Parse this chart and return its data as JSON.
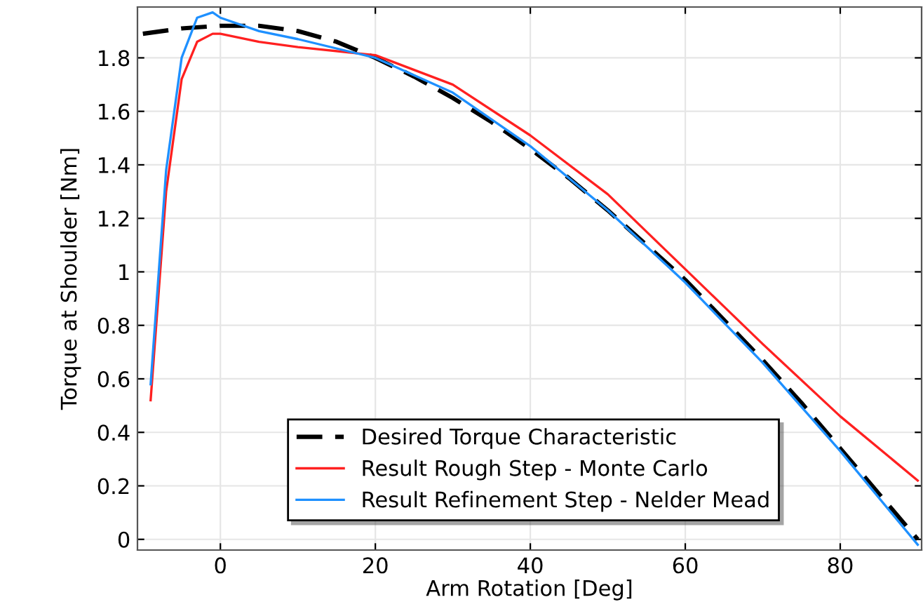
{
  "chart_data": {
    "type": "line",
    "xlabel": "Arm Rotation [Deg]",
    "ylabel": "Torque at Shoulder [Nm]",
    "xlim": [
      -10.7,
      90.5
    ],
    "ylim": [
      -0.04,
      1.99
    ],
    "xticks": [
      0,
      20,
      40,
      60,
      80
    ],
    "yticks": [
      0,
      0.2,
      0.4,
      0.6,
      0.8,
      1,
      1.2,
      1.4,
      1.6,
      1.8
    ],
    "grid": true,
    "legend": "bottom",
    "marker": "none",
    "series": [
      {
        "name": "Desired Torque Characteristic",
        "color": "#000000",
        "line_style": "dashed",
        "x": [
          -10,
          -5,
          0,
          5,
          10,
          15,
          20,
          25,
          30,
          35,
          40,
          45,
          50,
          55,
          60,
          65,
          70,
          75,
          80,
          85,
          90
        ],
        "values": [
          1.89,
          1.91,
          1.92,
          1.92,
          1.9,
          1.86,
          1.8,
          1.73,
          1.65,
          1.56,
          1.46,
          1.35,
          1.23,
          1.1,
          0.97,
          0.82,
          0.67,
          0.51,
          0.34,
          0.17,
          0.0
        ]
      },
      {
        "name": "Result Rough Step - Monte Carlo",
        "color": "#ff2020",
        "line_style": "solid",
        "x": [
          -9,
          -7,
          -5,
          -3,
          -1,
          0,
          5,
          10,
          20,
          30,
          40,
          50,
          60,
          70,
          80,
          90
        ],
        "values": [
          0.52,
          1.3,
          1.72,
          1.86,
          1.89,
          1.89,
          1.86,
          1.84,
          1.81,
          1.7,
          1.51,
          1.29,
          1.01,
          0.73,
          0.46,
          0.22
        ]
      },
      {
        "name": "Result Refinement Step - Nelder Mead",
        "color": "#1e90ff",
        "line_style": "solid",
        "x": [
          -9,
          -7,
          -5,
          -3,
          -1,
          0,
          5,
          10,
          20,
          30,
          40,
          50,
          60,
          70,
          80,
          90
        ],
        "values": [
          0.58,
          1.38,
          1.8,
          1.95,
          1.97,
          1.95,
          1.9,
          1.87,
          1.8,
          1.67,
          1.47,
          1.23,
          0.96,
          0.66,
          0.33,
          -0.02
        ]
      }
    ]
  }
}
